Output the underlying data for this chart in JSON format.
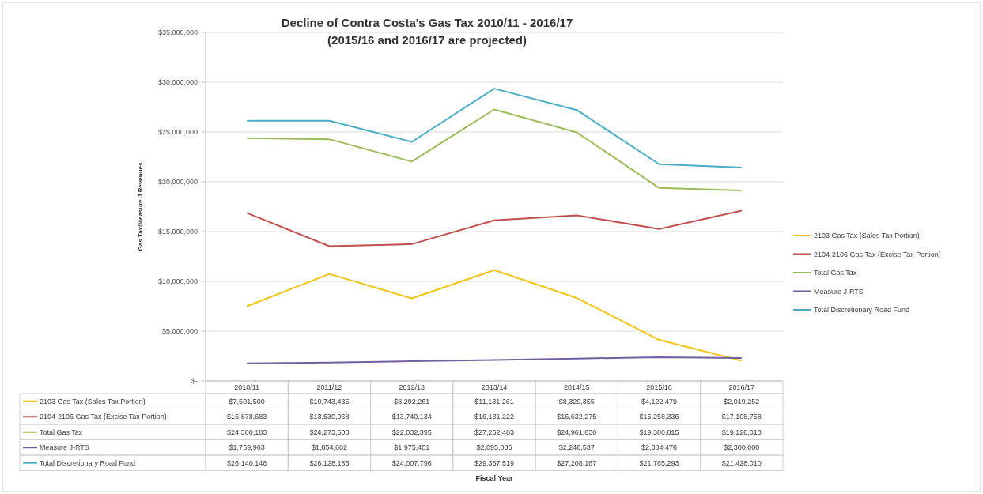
{
  "chart_data": {
    "type": "line",
    "title": "Decline of Contra Costa's Gas Tax 2010/11 - 2016/17\n(2015/16 and 2016/17 are projected)",
    "annotations": [
      "Fiscal Year"
    ],
    "ylabel": "Gas Tax/Measure J Revenues",
    "categories": [
      "2010/11",
      "2011/12",
      "2012/13",
      "2013/14",
      "2014/15",
      "2015/16",
      "2016/17"
    ],
    "series": [
      {
        "name": "2103 Gas Tax (Sales Tax Portion)",
        "color": "#f2c417",
        "values": [
          7501500,
          10743435,
          8292261,
          11131261,
          8329355,
          4122479,
          2019252
        ],
        "value_labels": [
          "$7,501,500",
          "$10,743,435",
          "$8,292,261",
          "$11,131,261",
          "$8,329,355",
          "$4,122,479",
          "$2,019,252"
        ]
      },
      {
        "name": "2104-2106 Gas Tax (Excise Tax Portion)",
        "color": "#c0504d",
        "values": [
          16878683,
          13530068,
          13740134,
          16131222,
          16632275,
          15258336,
          17108758
        ],
        "value_labels": [
          "$16,878,683",
          "$13,530,068",
          "$13,740,134",
          "$16,131,222",
          "$16,632,275",
          "$15,258,336",
          "$17,108,758"
        ]
      },
      {
        "name": "Total Gas Tax",
        "color": "#9bbb59",
        "values": [
          24380183,
          24273503,
          22032395,
          27262483,
          24961630,
          19380815,
          19128010
        ],
        "value_labels": [
          "$24,380,183",
          "$24,273,503",
          "$22,032,395",
          "$27,262,483",
          "$24,961,630",
          "$19,380,815",
          "$19,128,010"
        ]
      },
      {
        "name": "Measure J-RTS",
        "color": "#7060a0",
        "values": [
          1759963,
          1854682,
          1975401,
          2095036,
          2246537,
          2384478,
          2300000
        ],
        "value_labels": [
          "$1,759,963",
          "$1,854,682",
          "$1,975,401",
          "$2,095,036",
          "$2,246,537",
          "$2,384,478",
          "$2,300,000"
        ]
      },
      {
        "name": "Total Discretionary Road Fund",
        "color": "#4bacc6",
        "values": [
          26140146,
          26128185,
          24007796,
          29357519,
          27208167,
          21765293,
          21428010
        ],
        "value_labels": [
          "$26,140,146",
          "$26,128,185",
          "$24,007,796",
          "$29,357,519",
          "$27,208,167",
          "$21,765,293",
          "$21,428,010"
        ]
      }
    ],
    "ylim": [
      0,
      35000000
    ],
    "yticks": [
      {
        "value": 0,
        "label": "$-"
      },
      {
        "value": 5000000,
        "label": "$5,000,000"
      },
      {
        "value": 10000000,
        "label": "$10,000,000"
      },
      {
        "value": 15000000,
        "label": "$15,000,000"
      },
      {
        "value": 20000000,
        "label": "$20,000,000"
      },
      {
        "value": 25000000,
        "label": "$25,000,000"
      },
      {
        "value": 30000000,
        "label": "$30,000,000"
      },
      {
        "value": 35000000,
        "label": "$35,000,000"
      }
    ],
    "grid": "y",
    "legend": "right",
    "marker": "none",
    "line_style": "solid"
  }
}
